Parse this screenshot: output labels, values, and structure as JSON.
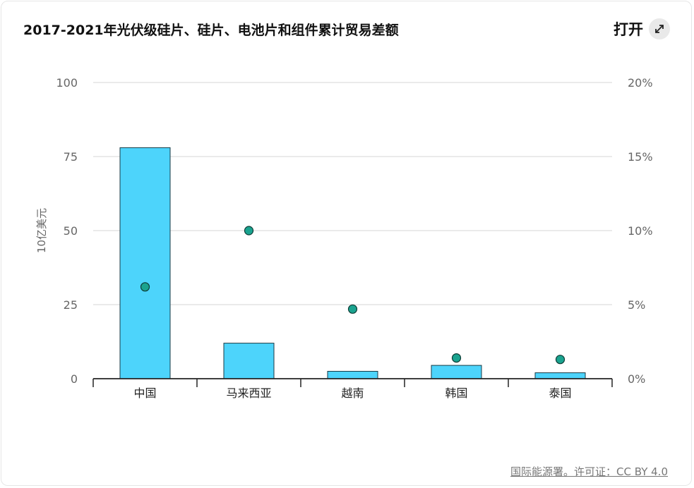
{
  "header": {
    "title": "2017-2021年光伏级硅片、硅片、电池片和组件累计贸易差额",
    "open_label": "打开",
    "expand_icon": "expand-icon"
  },
  "footer": {
    "source": "国际能源署。许可证：CC BY 4.0"
  },
  "colors": {
    "bar": "#4dd4fb",
    "bar_stroke": "#1a3a44",
    "point": "#1aa38f",
    "grid": "#e3e3e3",
    "axis": "#222222"
  },
  "chart_data": {
    "type": "bar",
    "title": "2017-2021年光伏级硅片、硅片、电池片和组件累计贸易差额",
    "categories": [
      "中国",
      "马来西亚",
      "越南",
      "韩国",
      "泰国"
    ],
    "series": [
      {
        "type": "bar",
        "axis": "left",
        "values": [
          78,
          12,
          2.5,
          4.5,
          2
        ]
      },
      {
        "type": "scatter",
        "axis": "right",
        "values": [
          6.2,
          10,
          4.7,
          1.4,
          1.3
        ]
      }
    ],
    "ylabel": "10亿美元",
    "ylim": [
      0,
      100
    ],
    "yticks": [
      "0",
      "25",
      "50",
      "75",
      "100"
    ],
    "y2lim": [
      0,
      20
    ],
    "y2ticks": [
      "0%",
      "5%",
      "10%",
      "15%",
      "20%"
    ],
    "grid": true
  }
}
